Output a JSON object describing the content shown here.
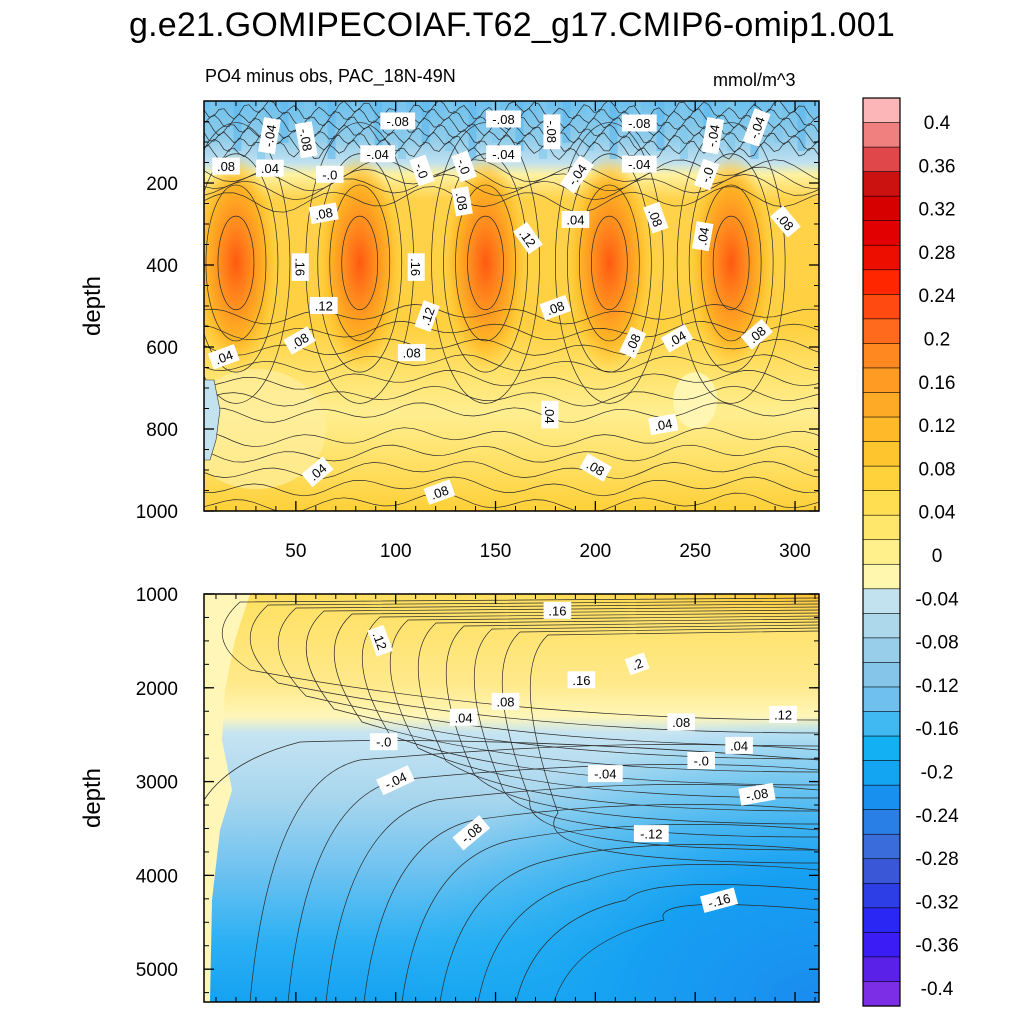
{
  "title": "g.e21.GOMIPECOIAF.T62_g17.CMIP6-omip1.001",
  "subtitle": "PO4 minus obs, PAC_18N-49N",
  "units": "mmol/m^3",
  "chart_data": [
    {
      "type": "heatmap",
      "name": "upper panel",
      "x_range": [
        4,
        312
      ],
      "x_ticks": [
        50,
        100,
        150,
        200,
        250,
        300
      ],
      "y_range": [
        0,
        1000
      ],
      "y_ticks": [
        200,
        400,
        600,
        800,
        1000
      ],
      "ylabel": "depth",
      "contour_labels": [
        {
          "text": "-.04",
          "x": 37,
          "y": 85,
          "rot": -80
        },
        {
          "text": "-.08",
          "x": 55,
          "y": 95,
          "rot": 80
        },
        {
          "text": "-.08",
          "x": 101,
          "y": 50,
          "rot": 0
        },
        {
          "text": "-.08",
          "x": 154,
          "y": 45,
          "rot": 0
        },
        {
          "text": "-.08",
          "x": 178,
          "y": 75,
          "rot": 90
        },
        {
          "text": "-.08",
          "x": 222,
          "y": 55,
          "rot": 0
        },
        {
          "text": "-.04",
          "x": 259,
          "y": 85,
          "rot": -80
        },
        {
          "text": "-.04",
          "x": 281,
          "y": 65,
          "rot": -70
        },
        {
          "text": "-.04",
          "x": 91,
          "y": 130,
          "rot": 0
        },
        {
          "text": "-.04",
          "x": 154,
          "y": 130,
          "rot": 0
        },
        {
          "text": "-.04",
          "x": 222,
          "y": 155,
          "rot": 0
        },
        {
          "text": ".08",
          "x": 15,
          "y": 160,
          "rot": 0
        },
        {
          "text": ".04",
          "x": 37,
          "y": 165,
          "rot": 0
        },
        {
          "text": "-.0",
          "x": 67,
          "y": 180,
          "rot": 0
        },
        {
          "text": "-.0",
          "x": 113,
          "y": 170,
          "rot": 70
        },
        {
          "text": "-.0",
          "x": 134,
          "y": 160,
          "rot": 70
        },
        {
          "text": "-.04",
          "x": 191,
          "y": 180,
          "rot": -55
        },
        {
          "text": "-.0",
          "x": 256,
          "y": 180,
          "rot": -70
        },
        {
          "text": ".08",
          "x": 64,
          "y": 275,
          "rot": -10
        },
        {
          "text": ".08",
          "x": 133,
          "y": 245,
          "rot": 80
        },
        {
          "text": ".12",
          "x": 166,
          "y": 335,
          "rot": 55
        },
        {
          "text": ".04",
          "x": 190,
          "y": 290,
          "rot": 0
        },
        {
          "text": ".08",
          "x": 230,
          "y": 285,
          "rot": 70
        },
        {
          "text": ".04",
          "x": 254,
          "y": 330,
          "rot": -80
        },
        {
          "text": ".08",
          "x": 295,
          "y": 295,
          "rot": 50
        },
        {
          "text": ".16",
          "x": 52,
          "y": 405,
          "rot": 90
        },
        {
          "text": ".16",
          "x": 110,
          "y": 405,
          "rot": 90
        },
        {
          "text": ".12",
          "x": 64,
          "y": 500,
          "rot": 0
        },
        {
          "text": ".12",
          "x": 116,
          "y": 525,
          "rot": -70
        },
        {
          "text": ".08",
          "x": 180,
          "y": 505,
          "rot": -20
        },
        {
          "text": ".08",
          "x": 52,
          "y": 585,
          "rot": -30
        },
        {
          "text": ".08",
          "x": 108,
          "y": 615,
          "rot": 0
        },
        {
          "text": ".08",
          "x": 219,
          "y": 590,
          "rot": -65
        },
        {
          "text": ".04",
          "x": 241,
          "y": 580,
          "rot": -30
        },
        {
          "text": ".08",
          "x": 281,
          "y": 570,
          "rot": -40
        },
        {
          "text": ".04",
          "x": 14,
          "y": 625,
          "rot": -20
        },
        {
          "text": ".04",
          "x": 177,
          "y": 765,
          "rot": 90
        },
        {
          "text": ".04",
          "x": 234,
          "y": 790,
          "rot": -10
        },
        {
          "text": ".08",
          "x": 200,
          "y": 895,
          "rot": 30
        },
        {
          "text": ".04",
          "x": 61,
          "y": 905,
          "rot": -40
        },
        {
          "text": ".08",
          "x": 122,
          "y": 955,
          "rot": -20
        }
      ]
    },
    {
      "type": "heatmap",
      "name": "lower panel",
      "x_range": [
        4,
        312
      ],
      "y_range": [
        1000,
        5350
      ],
      "y_ticks": [
        1000,
        2000,
        3000,
        4000,
        5000
      ],
      "ylabel": "depth",
      "contour_labels": [
        {
          "text": ".16",
          "x": 181,
          "y": 1180,
          "rot": 0
        },
        {
          "text": ".12",
          "x": 92,
          "y": 1500,
          "rot": 70
        },
        {
          "text": ".2",
          "x": 221,
          "y": 1750,
          "rot": -20
        },
        {
          "text": ".16",
          "x": 193,
          "y": 1920,
          "rot": 0
        },
        {
          "text": ".08",
          "x": 155,
          "y": 2150,
          "rot": 0
        },
        {
          "text": ".04",
          "x": 134,
          "y": 2320,
          "rot": 0
        },
        {
          "text": ".08",
          "x": 243,
          "y": 2370,
          "rot": 0
        },
        {
          "text": ".12",
          "x": 294,
          "y": 2290,
          "rot": 0
        },
        {
          "text": ".04",
          "x": 272,
          "y": 2620,
          "rot": 0
        },
        {
          "text": "-.0",
          "x": 94,
          "y": 2580,
          "rot": 0
        },
        {
          "text": "-.0",
          "x": 253,
          "y": 2780,
          "rot": 0
        },
        {
          "text": "-.04",
          "x": 100,
          "y": 2990,
          "rot": -25
        },
        {
          "text": "-.04",
          "x": 205,
          "y": 2920,
          "rot": 0
        },
        {
          "text": "-.08",
          "x": 281,
          "y": 3140,
          "rot": -10
        },
        {
          "text": "-.08",
          "x": 138,
          "y": 3550,
          "rot": -40
        },
        {
          "text": "-.12",
          "x": 228,
          "y": 3560,
          "rot": 0
        },
        {
          "text": "-.16",
          "x": 262,
          "y": 4270,
          "rot": -15
        }
      ]
    }
  ],
  "colorbar": {
    "labels": [
      "0.4",
      "0.36",
      "0.32",
      "0.28",
      "0.24",
      "0.2",
      "0.16",
      "0.12",
      "0.08",
      "0.04",
      "0",
      "-0.04",
      "-0.08",
      "-0.12",
      "-0.16",
      "-0.2",
      "-0.24",
      "-0.28",
      "-0.32",
      "-0.36",
      "-0.4"
    ],
    "colors": [
      "#FDB6B8",
      "#F08080",
      "#E0474B",
      "#CC1111",
      "#D60000",
      "#E20000",
      "#EE0E00",
      "#FF2600",
      "#FF4A12",
      "#FF6A1C",
      "#FF8820",
      "#FF9A22",
      "#FFAA26",
      "#FFB929",
      "#FFC52E",
      "#FFD23C",
      "#FFDE52",
      "#FFE76C",
      "#FFF08C",
      "#FFF7AE",
      "#C3E2F0",
      "#ADD8EC",
      "#98CEEA",
      "#86C5EA",
      "#6FC0EF",
      "#40B8F2",
      "#14B0F4",
      "#14A5F2",
      "#1890F0",
      "#2A7FE6",
      "#3A6CDC",
      "#3A57D8",
      "#2E3EE6",
      "#2A27F4",
      "#3B1CF4",
      "#5A22E8",
      "#7C2DE6"
    ]
  }
}
